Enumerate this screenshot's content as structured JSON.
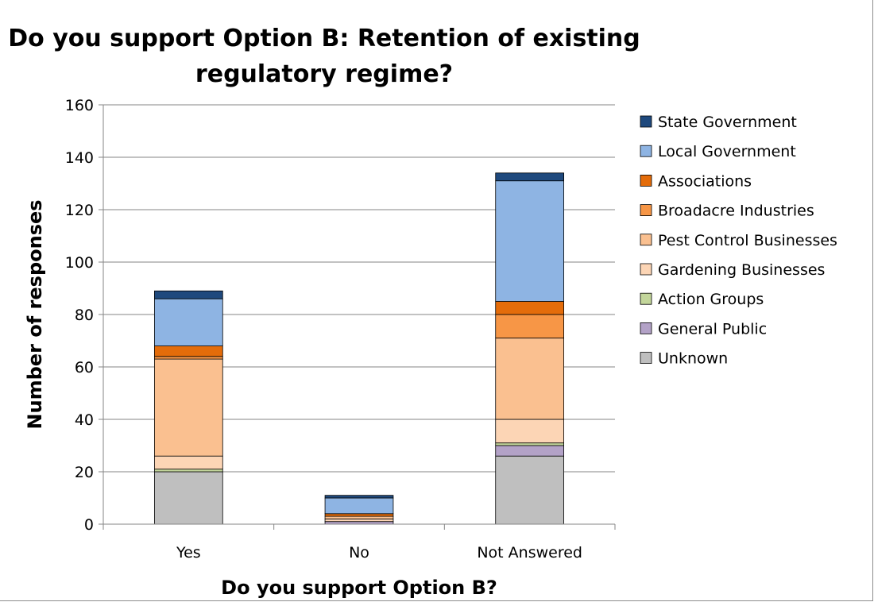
{
  "chart_data": {
    "type": "bar",
    "stacked": true,
    "title_line1": "Do you support Option B: Retention of existing",
    "title_line2": "regulatory regime?",
    "xlabel": "Do you support Option B?",
    "ylabel": "Number of responses",
    "categories": [
      "Yes",
      "No",
      "Not Answered"
    ],
    "ylim": [
      0,
      160
    ],
    "yticks": [
      0,
      20,
      40,
      60,
      80,
      100,
      120,
      140,
      160
    ],
    "grid": true,
    "legend_position": "right",
    "series": [
      {
        "name": "Unknown",
        "color": "#bfbfbf",
        "values": [
          20,
          0,
          26
        ]
      },
      {
        "name": "General Public",
        "color": "#b3a2c7",
        "values": [
          0,
          1,
          4
        ]
      },
      {
        "name": "Action Groups",
        "color": "#c3d69b",
        "values": [
          1,
          0,
          1
        ]
      },
      {
        "name": "Gardening Businesses",
        "color": "#fcd5b5",
        "values": [
          5,
          1,
          9
        ]
      },
      {
        "name": "Pest Control Businesses",
        "color": "#fac090",
        "values": [
          37,
          1,
          31
        ]
      },
      {
        "name": "Broadacre Industries",
        "color": "#f79646",
        "values": [
          1,
          0,
          9
        ]
      },
      {
        "name": "Associations",
        "color": "#e46c0a",
        "values": [
          4,
          1,
          5
        ]
      },
      {
        "name": "Local Government",
        "color": "#8eb4e3",
        "values": [
          18,
          6,
          46
        ]
      },
      {
        "name": "State Government",
        "color": "#1f497d",
        "values": [
          3,
          1,
          3
        ]
      }
    ]
  }
}
